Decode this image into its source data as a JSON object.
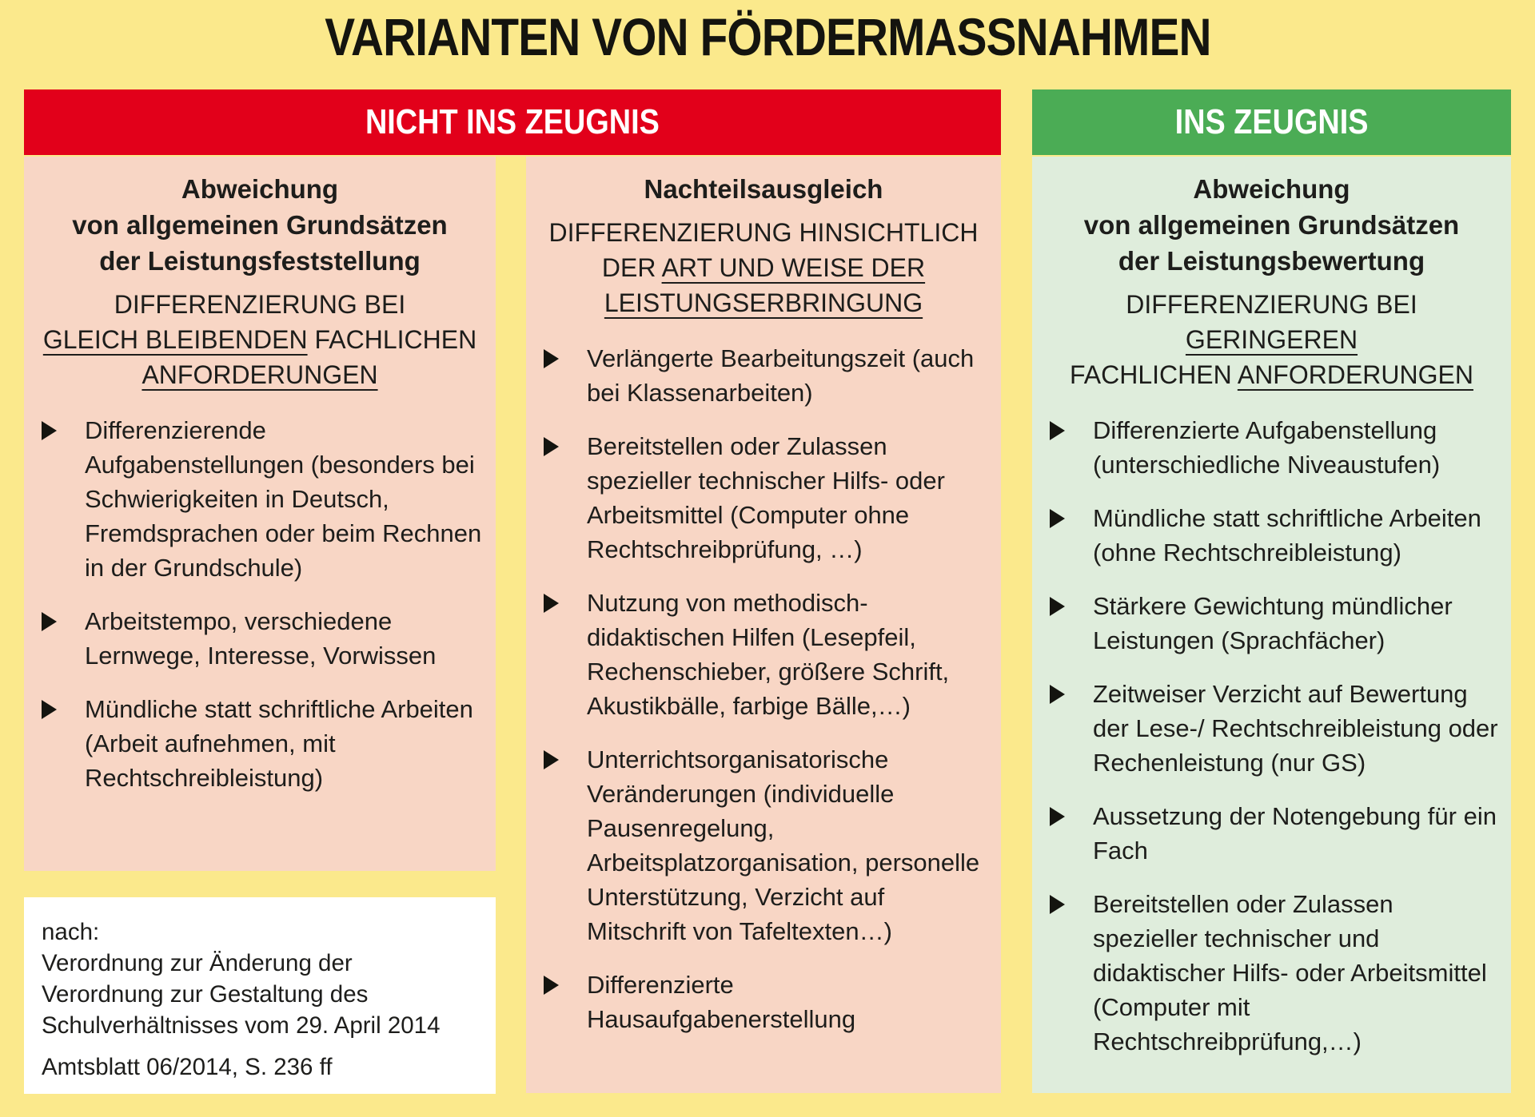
{
  "title": "VARIANTEN VON FÖRDERMASSNAHMEN",
  "colors": {
    "background": "#FBE98C",
    "header_not_in_report": "#E2001A",
    "header_in_report": "#4BAC55",
    "panel_pink": "#F8D6C5",
    "panel_green": "#DFEDDC",
    "note_box": "#FFFFFF",
    "text": "#1D1D1B"
  },
  "headers": {
    "not_in_report": "NICHT INS ZEUGNIS",
    "in_report": "INS ZEUGNIS"
  },
  "columns": [
    {
      "heading": "Abweichung\nvon allgemeinen Grundsätzen\nder Leistungsfeststellung",
      "subheading": [
        {
          "text": "DIFFERENZIERUNG BEI\n"
        },
        {
          "text": "GLEICH BLEIBENDEN",
          "underline": true
        },
        {
          "text": " FACHLICHEN\n"
        },
        {
          "text": "ANFORDERUNGEN",
          "underline": true
        }
      ],
      "bullets": [
        "Differenzierende Aufgabenstellungen (besonders bei Schwierigkeiten in Deutsch, Fremdsprachen oder beim Rechnen in der Grundschule)",
        "Arbeitstempo, verschiedene Lernwege, Interesse, Vorwissen",
        "Mündliche statt schriftliche Arbeiten (Arbeit aufnehmen, mit Rechtschreibleistung)"
      ]
    },
    {
      "heading": "Nachteilsausgleich",
      "subheading": [
        {
          "text": "DIFFERENZIERUNG HINSICHTLICH\nDER "
        },
        {
          "text": "ART UND WEISE DER",
          "underline": true
        },
        {
          "text": "\n"
        },
        {
          "text": "LEISTUNGSERBRINGUNG",
          "underline": true
        }
      ],
      "bullets": [
        "Verlängerte Bearbeitungszeit (auch bei Klassenarbeiten)",
        "Bereitstellen oder Zulassen spezieller technischer Hilfs- oder Arbeitsmittel (Computer ohne Rechtschreibprüfung, …)",
        "Nutzung von methodisch-didaktischen Hilfen (Lesepfeil, Rechenschieber, größere Schrift, Akustikbälle, farbige Bälle,…)",
        "Unterrichtsorganisatorische Veränderungen (individuelle Pausenregelung, Arbeitsplatzorganisation, personelle Unterstützung, Verzicht auf Mitschrift von Tafeltexten…)",
        "Differenzierte Hausaufgabenerstellung"
      ]
    },
    {
      "heading": "Abweichung\nvon allgemeinen Grundsätzen\nder Leistungsbewertung",
      "subheading": [
        {
          "text": "DIFFERENZIERUNG BEI "
        },
        {
          "text": "GERINGEREN",
          "underline": true
        },
        {
          "text": "\nFACHLICHEN "
        },
        {
          "text": "ANFORDERUNGEN",
          "underline": true
        }
      ],
      "bullets": [
        "Differenzierte Aufgabenstellung (unterschiedliche Niveaustufen)",
        "Mündliche statt schriftliche Arbeiten (ohne Rechtschreibleistung)",
        "Stärkere Gewichtung mündlicher Leistungen (Sprachfächer)",
        "Zeitweiser Verzicht auf Bewertung der Lese-/ Rechtschreibleistung oder Rechenleistung (nur GS)",
        "Aussetzung der Notengebung für ein Fach",
        "Bereitstellen oder Zulassen spezieller technischer und didaktischer Hilfs- oder Arbeitsmittel (Computer mit Rechtschreibprüfung,…)"
      ]
    }
  ],
  "source_note": {
    "intro": "nach:\nVerordnung zur Änderung der\nVerordnung zur Gestaltung des\nSchulverhältnisses vom 29. April 2014",
    "reference": "Amtsblatt 06/2014, S. 236 ff"
  }
}
